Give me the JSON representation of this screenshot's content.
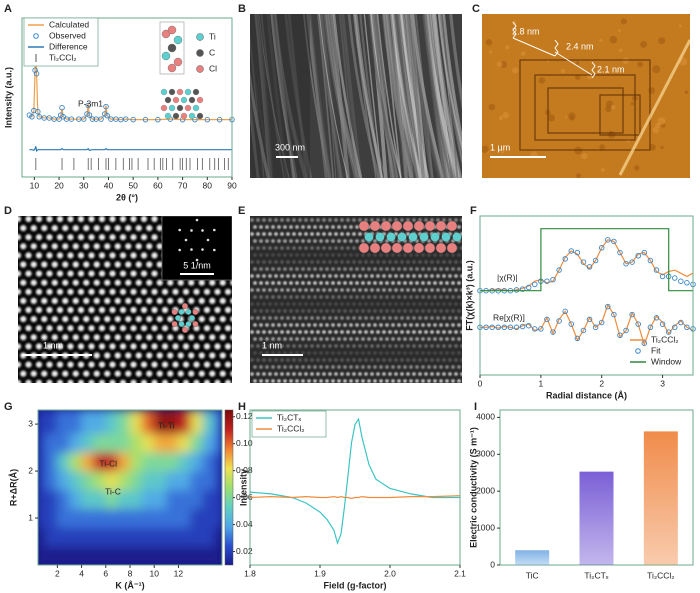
{
  "chart_data": [
    {
      "type": "line",
      "label": "A",
      "xlabel": "2θ (°)",
      "ylabel": "Intensity (a.u.)",
      "xlim": [
        5,
        90
      ],
      "xticks": [
        10,
        20,
        30,
        40,
        50,
        60,
        70,
        80,
        90
      ],
      "ylim": [
        -40,
        100
      ],
      "x": [
        8,
        9,
        9.8,
        10.3,
        10.6,
        10.9,
        11.4,
        12,
        14,
        16,
        18,
        20,
        20.7,
        21.2,
        21.7,
        23,
        25,
        28,
        30,
        31.3,
        31.8,
        32.3,
        33.5,
        35,
        37,
        38.5,
        39,
        39.5,
        41,
        43,
        45,
        47,
        50,
        55,
        60,
        65,
        70,
        75,
        80,
        85,
        90
      ],
      "series": [
        {
          "name": "Calculated",
          "color": "#f0a04b",
          "values": [
            14,
            13,
            18,
            55,
            89,
            50,
            17,
            13,
            12,
            12,
            11,
            11,
            14,
            20,
            13,
            11,
            11,
            11,
            11,
            15,
            24,
            14,
            11,
            11,
            11,
            15,
            23,
            14,
            11,
            11,
            10.5,
            11,
            10.5,
            10.5,
            10.5,
            11,
            10.5,
            10.5,
            10.5,
            10.5,
            10.5
          ]
        },
        {
          "name": "Observed",
          "color": "#3a86c8",
          "marker": "circle",
          "values": [
            14.5,
            13,
            18.5,
            54,
            88,
            51,
            17.5,
            13,
            12,
            12,
            11,
            11,
            14.5,
            21,
            13,
            11,
            11,
            11,
            11,
            15.5,
            23,
            14.5,
            11,
            11,
            11,
            15.5,
            22,
            14,
            11,
            11,
            10.5,
            11,
            10.5,
            10.5,
            10.5,
            11,
            10.5,
            10.5,
            10.5,
            10.5,
            10.5
          ]
        },
        {
          "name": "Difference",
          "color": "#2b7bb9",
          "values": [
            -16,
            -16,
            -16.5,
            -15,
            -13,
            -17,
            -16,
            -16,
            -16,
            -16,
            -16,
            -16,
            -16,
            -15,
            -16,
            -16,
            -16,
            -16,
            -16,
            -16,
            -15,
            -16.5,
            -16,
            -16,
            -16,
            -16,
            -15,
            -16,
            -16,
            -16,
            -16,
            -16,
            -16,
            -16,
            -16,
            -16,
            -16,
            -16,
            -16,
            -16,
            -16
          ]
        }
      ],
      "reference": {
        "name": "Ti₂CCl₂",
        "color": "#555555",
        "positions": [
          10.6,
          21.2,
          26,
          31.8,
          33,
          36,
          39,
          40,
          43,
          46,
          48.5,
          49.5,
          52,
          56,
          58.5,
          61,
          62,
          63.5,
          66,
          69,
          70,
          71.5,
          73,
          76,
          78,
          81,
          83,
          84.5,
          87,
          88.5
        ]
      },
      "annotations": [
        "P-3m1"
      ],
      "elements": [
        {
          "name": "Ti",
          "color": "#5ecfcf"
        },
        {
          "name": "C",
          "color": "#555555"
        },
        {
          "name": "Cl",
          "color": "#e98080"
        }
      ],
      "legend": "upper left"
    },
    {
      "type": "line",
      "label": "F",
      "xlabel": "Radial distance (Å)",
      "ylabel": "FT(χ(k)×k³) (a.u.)",
      "xlim": [
        0,
        3.5
      ],
      "xticks": [
        0,
        1,
        2,
        3
      ],
      "ylim": [
        0,
        10
      ],
      "x": [
        0,
        0.1,
        0.2,
        0.3,
        0.4,
        0.5,
        0.6,
        0.7,
        0.8,
        0.9,
        1,
        1.1,
        1.2,
        1.3,
        1.4,
        1.5,
        1.6,
        1.7,
        1.8,
        1.9,
        2,
        2.1,
        2.2,
        2.3,
        2.4,
        2.5,
        2.6,
        2.7,
        2.8,
        2.9,
        3,
        3.1,
        3.2,
        3.3,
        3.4,
        3.5
      ],
      "series": [
        {
          "name": "Ti₂CCl₂",
          "color": "#f08c3c",
          "values": [
            5.3,
            5.3,
            5.35,
            5.4,
            5.35,
            5.3,
            5.35,
            5.45,
            5.6,
            5.9,
            6.0,
            5.8,
            5.9,
            6.6,
            7.4,
            7.8,
            7.6,
            7.0,
            6.7,
            7.2,
            8.0,
            8.5,
            8.4,
            7.7,
            7.0,
            7.1,
            7.6,
            7.7,
            7.2,
            6.5,
            6.3,
            6.5,
            6.6,
            6.4,
            6.2,
            6.4
          ]
        },
        {
          "name": "Fit",
          "color": "#3a86c8",
          "marker": "circle",
          "values": [
            5.3,
            5.3,
            5.3,
            5.3,
            5.3,
            5.3,
            5.35,
            5.4,
            5.5,
            5.7,
            5.9,
            5.9,
            6.0,
            6.6,
            7.3,
            7.8,
            7.7,
            7.1,
            6.8,
            7.2,
            8.0,
            8.5,
            8.4,
            7.7,
            7.0,
            7.1,
            7.5,
            7.7,
            7.2,
            6.6,
            6.2,
            6.2,
            6.1,
            5.9,
            5.8,
            5.7
          ]
        },
        {
          "name": "Window",
          "color": "#2e8b3e",
          "x": [
            0,
            1,
            1,
            3.1,
            3.1,
            3.5
          ],
          "values": [
            5.3,
            5.3,
            9.2,
            9.2,
            5.3,
            5.3
          ]
        },
        {
          "color": "#f08c3c",
          "values": [
            3.0,
            3.0,
            3.05,
            2.95,
            3.05,
            3.0,
            2.9,
            3.1,
            3.2,
            2.8,
            2.9,
            3.6,
            2.6,
            3.5,
            4.0,
            3.2,
            2.2,
            2.8,
            3.6,
            3.0,
            3.3,
            4.4,
            3.8,
            2.4,
            2.8,
            3.9,
            3.2,
            1.9,
            3.0,
            3.7,
            3.3,
            2.6,
            3.1,
            3.4,
            3.0,
            2.8
          ]
        },
        {
          "color": "#3a86c8",
          "marker": "circle",
          "values": [
            3.0,
            3.0,
            3.0,
            3.0,
            3.0,
            3.0,
            3.0,
            3.05,
            3.1,
            2.9,
            2.9,
            3.5,
            2.7,
            3.4,
            4.0,
            3.2,
            2.3,
            2.8,
            3.5,
            3.0,
            3.3,
            4.3,
            3.8,
            2.5,
            2.8,
            3.8,
            3.2,
            2.0,
            3.0,
            3.6,
            3.2,
            2.7,
            3.0,
            3.3,
            3.0,
            2.9
          ]
        }
      ],
      "annotations": [
        "|χ(R)|",
        "Re[χ(R)]"
      ],
      "legend": "lower right"
    },
    {
      "type": "heatmap",
      "label": "G",
      "xlabel": "K (Å⁻¹)",
      "ylabel": "R+ΔR(Å)",
      "xlim": [
        0.4,
        15.6
      ],
      "xticks": [
        2,
        4,
        6,
        8,
        10,
        12
      ],
      "ylim": [
        0,
        3.3
      ],
      "yticks": [
        1,
        2,
        3
      ],
      "x": [
        0.5,
        1.5,
        2.5,
        3.5,
        4.5,
        5.5,
        6.5,
        7.5,
        8.5,
        9.5,
        10.5,
        11.5,
        12.5,
        13.5,
        14.5,
        15.5
      ],
      "y": [
        0.2,
        0.6,
        1.0,
        1.4,
        1.8,
        2.2,
        2.6,
        3.0
      ],
      "values": [
        [
          0.01,
          0.01,
          0.01,
          0.01,
          0.01,
          0.01,
          0.01,
          0.01,
          0.01,
          0.01,
          0.01,
          0.01,
          0.01,
          0.01,
          0.01,
          0.01
        ],
        [
          0.01,
          0.02,
          0.02,
          0.02,
          0.02,
          0.02,
          0.02,
          0.02,
          0.02,
          0.02,
          0.02,
          0.02,
          0.02,
          0.02,
          0.02,
          0.01
        ],
        [
          0.02,
          0.02,
          0.03,
          0.03,
          0.03,
          0.03,
          0.03,
          0.03,
          0.03,
          0.03,
          0.03,
          0.03,
          0.03,
          0.02,
          0.02,
          0.02
        ],
        [
          0.02,
          0.02,
          0.03,
          0.04,
          0.05,
          0.05,
          0.06,
          0.05,
          0.05,
          0.04,
          0.04,
          0.03,
          0.03,
          0.03,
          0.02,
          0.02
        ],
        [
          0.02,
          0.03,
          0.04,
          0.05,
          0.06,
          0.07,
          0.08,
          0.07,
          0.06,
          0.05,
          0.05,
          0.04,
          0.04,
          0.03,
          0.03,
          0.02
        ],
        [
          0.02,
          0.03,
          0.05,
          0.07,
          0.09,
          0.11,
          0.11,
          0.09,
          0.07,
          0.06,
          0.06,
          0.06,
          0.05,
          0.04,
          0.03,
          0.02
        ],
        [
          0.02,
          0.03,
          0.03,
          0.04,
          0.05,
          0.06,
          0.06,
          0.06,
          0.07,
          0.08,
          0.09,
          0.09,
          0.08,
          0.06,
          0.04,
          0.03
        ],
        [
          0.02,
          0.02,
          0.03,
          0.03,
          0.04,
          0.04,
          0.05,
          0.06,
          0.08,
          0.1,
          0.12,
          0.12,
          0.11,
          0.08,
          0.05,
          0.03
        ]
      ],
      "clim": [
        0.01,
        0.125
      ],
      "cticks": [
        0.02,
        0.04,
        0.06,
        0.08,
        {
          "value": 0.1,
          "label": "0.10"
        },
        0.12
      ],
      "colormap": [
        "#1a1a8c",
        "#2b50d0",
        "#50a8e8",
        "#60d0c0",
        "#9ee070",
        "#f0e050",
        "#f08030",
        "#c02020",
        "#7a0a0a"
      ],
      "annotations": [
        "Ti-Ti",
        "Ti-Cl",
        "Ti-C"
      ]
    },
    {
      "type": "line",
      "label": "H",
      "xlabel": "Field (g-factor)",
      "ylabel": "Intensity",
      "xlim": [
        1.8,
        2.1
      ],
      "xticks": [
        1.8,
        1.9,
        {
          "value": 2,
          "label": "2.0"
        },
        2.1
      ],
      "ylim": [
        -37,
        48
      ],
      "x": [
        1.8,
        1.83,
        1.86,
        1.88,
        1.9,
        1.91,
        1.92,
        1.925,
        1.93,
        1.935,
        1.94,
        1.945,
        1.95,
        1.955,
        1.96,
        1.97,
        1.98,
        2.0,
        2.03,
        2.06,
        2.1
      ],
      "series": [
        {
          "name": "Ti₂CTₓ",
          "color": "#3cc4c4",
          "values": [
            3,
            2,
            0,
            -3,
            -8,
            -12,
            -18,
            -25,
            -20,
            -5,
            12,
            30,
            40,
            43,
            33,
            18,
            10,
            5,
            2,
            0,
            0
          ]
        },
        {
          "name": "Ti₂CCl₂",
          "color": "#f08c3c",
          "values": [
            0,
            0.5,
            0,
            0.5,
            0,
            0,
            0.5,
            0,
            0.5,
            0,
            0,
            -0.5,
            0,
            0,
            0.5,
            0,
            0,
            0,
            0.5,
            0.5,
            1
          ]
        }
      ],
      "legend": "upper left"
    },
    {
      "type": "bar",
      "label": "I",
      "ylabel": "Electric conductivity (S m⁻¹)",
      "categories": [
        "TiC",
        "Ti₂CTₓ",
        "Ti₂CCl₂"
      ],
      "values": [
        400,
        2530,
        3620
      ],
      "colors": [
        "#7fb3e6",
        "#7a5fd6",
        "#f08c4a"
      ],
      "ylim": [
        0,
        4200
      ],
      "yticks": [
        0,
        1000,
        2000,
        3000,
        4000
      ]
    }
  ],
  "images": [
    {
      "label": "B",
      "scale_bar": "300 nm"
    },
    {
      "label": "C",
      "scale_bar": "1 μm",
      "annotations": [
        "2.8 nm",
        "2.4 nm",
        "2.1 nm"
      ]
    },
    {
      "label": "D",
      "scale_bar": "1 nm",
      "inset_scale_bar": "5 1/nm"
    },
    {
      "label": "E",
      "scale_bar": "1 nm"
    }
  ]
}
